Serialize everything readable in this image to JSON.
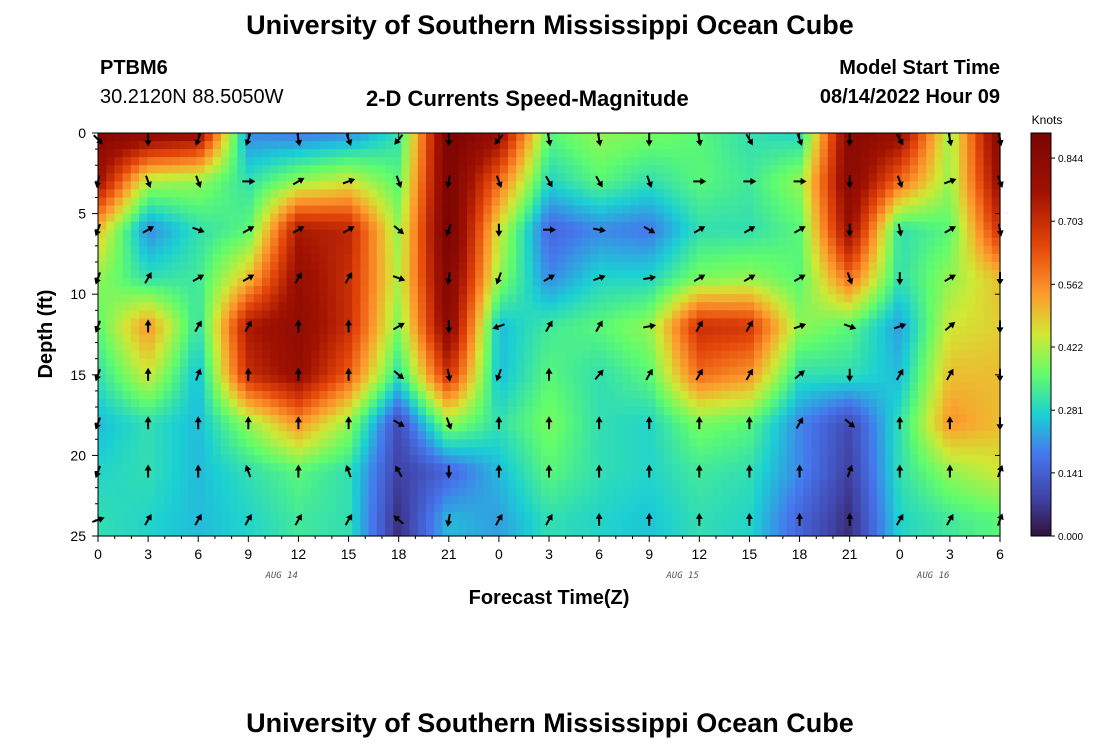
{
  "header": {
    "title": "University of Southern Mississippi Ocean Cube",
    "station": "PTBM6",
    "coords": "30.2120N  88.5050W",
    "subtitle": "2-D Currents Speed-Magnitude",
    "model_start_label": "Model Start Time",
    "model_start_value": "08/14/2022 Hour 09",
    "footer_title": "University of Southern Mississippi Ocean Cube"
  },
  "chart_data": {
    "type": "heatmap",
    "title": "2-D Currents Speed-Magnitude",
    "xlabel": "Forecast Time(Z)",
    "ylabel": "Depth (ft)",
    "x_ticks": [
      "0",
      "3",
      "6",
      "9",
      "12",
      "15",
      "18",
      "21",
      "0",
      "3",
      "6",
      "9",
      "12",
      "15",
      "18",
      "21",
      "0",
      "3",
      "6"
    ],
    "x_hours": [
      0,
      3,
      6,
      9,
      12,
      15,
      18,
      21,
      24,
      27,
      30,
      33,
      36,
      39,
      42,
      45,
      48,
      51,
      54
    ],
    "date_labels": [
      {
        "label": "AUG 14",
        "hour": 11
      },
      {
        "label": "AUG 15",
        "hour": 35
      },
      {
        "label": "AUG 16",
        "hour": 50
      }
    ],
    "y_ticks": [
      "0",
      "5",
      "10",
      "15",
      "20",
      "25"
    ],
    "y_values": [
      0,
      5,
      10,
      15,
      20,
      25
    ],
    "ylim": [
      0,
      25
    ],
    "xlim": [
      0,
      54
    ],
    "colorbar": {
      "unit": "Knots",
      "ticks": [
        "0.844",
        "0.703",
        "0.562",
        "0.422",
        "0.281",
        "0.141",
        "0.000"
      ],
      "tick_values": [
        0.844,
        0.703,
        0.562,
        0.422,
        0.281,
        0.141,
        0.0
      ],
      "min": 0.0,
      "max": 0.9
    },
    "speed_hours": [
      0,
      3,
      6,
      9,
      12,
      15,
      18,
      21,
      24,
      27,
      30,
      33,
      36,
      39,
      42,
      45,
      48,
      51,
      54
    ],
    "speed_depths": [
      0,
      3,
      6,
      9,
      12,
      15,
      18,
      21,
      24
    ],
    "speed_grid": [
      [
        0.86,
        0.84,
        0.8,
        0.2,
        0.18,
        0.2,
        0.3,
        0.9,
        0.8,
        0.35,
        0.4,
        0.38,
        0.35,
        0.3,
        0.28,
        0.85,
        0.8,
        0.4,
        0.86
      ],
      [
        0.78,
        0.42,
        0.4,
        0.3,
        0.4,
        0.45,
        0.35,
        0.9,
        0.6,
        0.28,
        0.35,
        0.3,
        0.35,
        0.32,
        0.4,
        0.85,
        0.6,
        0.4,
        0.8
      ],
      [
        0.5,
        0.2,
        0.3,
        0.35,
        0.75,
        0.72,
        0.4,
        0.92,
        0.45,
        0.15,
        0.2,
        0.18,
        0.3,
        0.3,
        0.35,
        0.8,
        0.3,
        0.35,
        0.7
      ],
      [
        0.4,
        0.3,
        0.32,
        0.5,
        0.8,
        0.7,
        0.42,
        0.88,
        0.4,
        0.2,
        0.28,
        0.28,
        0.38,
        0.4,
        0.35,
        0.6,
        0.3,
        0.4,
        0.5
      ],
      [
        0.35,
        0.55,
        0.3,
        0.75,
        0.82,
        0.7,
        0.38,
        0.85,
        0.25,
        0.32,
        0.35,
        0.4,
        0.7,
        0.68,
        0.4,
        0.35,
        0.22,
        0.45,
        0.48
      ],
      [
        0.3,
        0.45,
        0.25,
        0.7,
        0.8,
        0.62,
        0.3,
        0.7,
        0.25,
        0.35,
        0.3,
        0.35,
        0.6,
        0.55,
        0.3,
        0.3,
        0.25,
        0.5,
        0.5
      ],
      [
        0.25,
        0.3,
        0.25,
        0.4,
        0.55,
        0.4,
        0.1,
        0.4,
        0.3,
        0.38,
        0.3,
        0.28,
        0.38,
        0.35,
        0.2,
        0.1,
        0.3,
        0.55,
        0.5
      ],
      [
        0.28,
        0.3,
        0.25,
        0.3,
        0.35,
        0.3,
        0.08,
        0.15,
        0.25,
        0.35,
        0.3,
        0.28,
        0.32,
        0.3,
        0.2,
        0.08,
        0.3,
        0.4,
        0.45
      ],
      [
        0.3,
        0.28,
        0.25,
        0.28,
        0.32,
        0.3,
        0.05,
        0.25,
        0.22,
        0.3,
        0.28,
        0.26,
        0.3,
        0.28,
        0.15,
        0.05,
        0.28,
        0.32,
        0.35
      ]
    ],
    "arrow_hours": [
      0,
      3,
      6,
      9,
      12,
      15,
      18,
      21,
      24,
      27,
      30,
      33,
      36,
      39,
      42,
      45,
      48,
      51,
      54
    ],
    "arrow_depths": [
      0,
      3,
      6,
      9,
      12,
      15,
      18,
      21,
      24
    ],
    "arrow_dir_deg": [
      [
        135,
        180,
        200,
        200,
        170,
        160,
        220,
        180,
        220,
        170,
        170,
        180,
        170,
        150,
        160,
        180,
        150,
        170,
        170
      ],
      [
        190,
        160,
        160,
        90,
        60,
        70,
        160,
        190,
        160,
        150,
        150,
        160,
        90,
        90,
        90,
        180,
        160,
        70,
        160
      ],
      [
        200,
        60,
        110,
        60,
        60,
        60,
        130,
        200,
        180,
        90,
        100,
        120,
        60,
        60,
        60,
        180,
        170,
        60,
        170
      ],
      [
        200,
        30,
        60,
        60,
        30,
        30,
        110,
        190,
        200,
        60,
        70,
        80,
        60,
        60,
        60,
        160,
        180,
        60,
        180
      ],
      [
        200,
        0,
        30,
        30,
        0,
        0,
        60,
        180,
        250,
        30,
        30,
        80,
        30,
        30,
        70,
        110,
        70,
        50,
        180
      ],
      [
        200,
        0,
        20,
        0,
        0,
        0,
        130,
        170,
        200,
        0,
        40,
        30,
        30,
        30,
        50,
        180,
        30,
        30,
        180
      ],
      [
        200,
        0,
        0,
        0,
        0,
        0,
        120,
        160,
        0,
        0,
        0,
        0,
        0,
        0,
        30,
        130,
        0,
        0,
        180
      ],
      [
        200,
        0,
        0,
        340,
        0,
        340,
        330,
        180,
        0,
        0,
        0,
        0,
        0,
        0,
        0,
        20,
        0,
        0,
        20
      ],
      [
        70,
        30,
        30,
        30,
        30,
        30,
        310,
        190,
        30,
        30,
        0,
        0,
        0,
        0,
        0,
        0,
        30,
        30,
        20
      ]
    ]
  }
}
